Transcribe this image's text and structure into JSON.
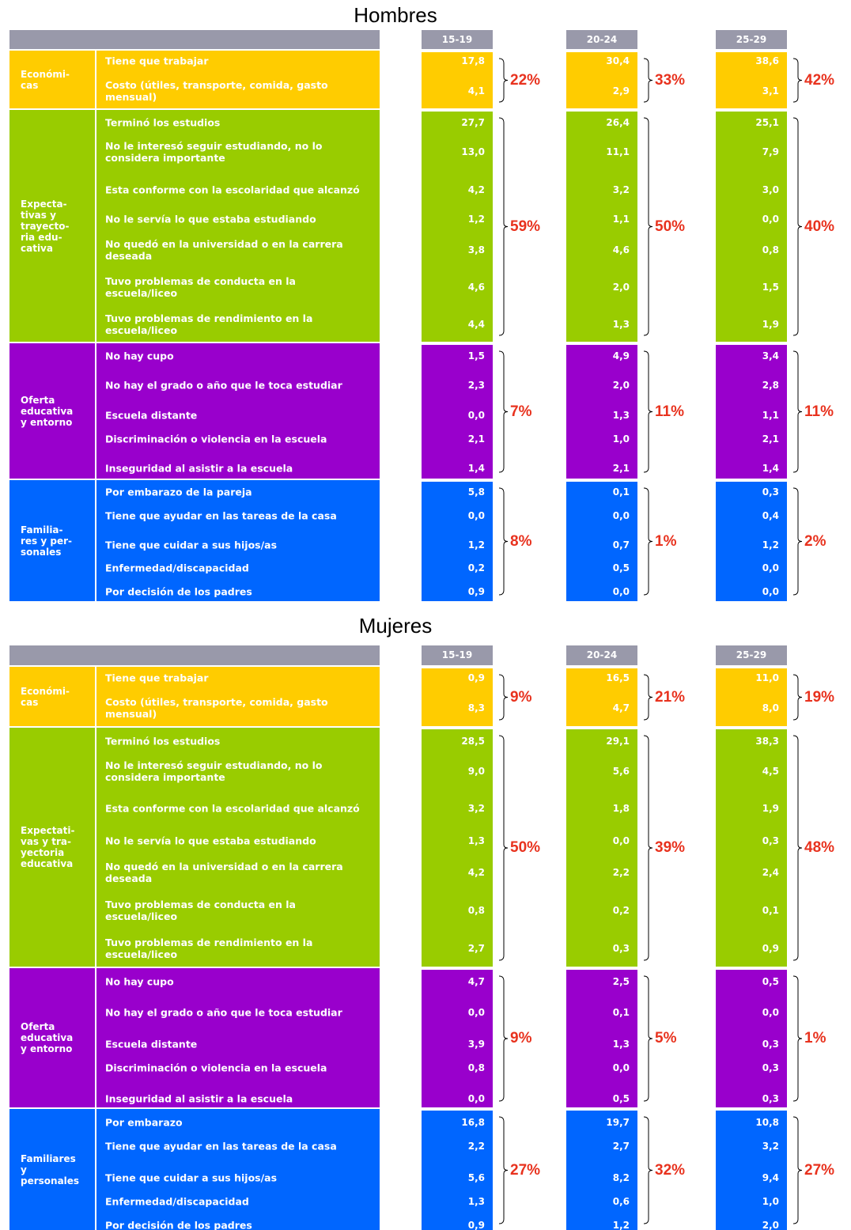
{
  "sections": [
    {
      "title": "Hombres",
      "groups": [
        {
          "label": "Económi-\ncas",
          "items": [
            "Tiene que trabajar",
            "Costo (útiles, transporte, comida, gasto mensual)"
          ]
        },
        {
          "label": "Expecta-\ntivas y\ntrayecto-\nria edu-\ncativa",
          "items": [
            "Terminó los estudios",
            "No le interesó seguir estudiando, no lo considera importante",
            "Esta conforme con la escolaridad que alcanzó",
            "No le servía lo que estaba estudiando",
            "No quedó en la universidad o en la carrera deseada",
            "Tuvo problemas de conducta en la escuela/liceo",
            "Tuvo problemas de rendimiento en la escuela/liceo"
          ]
        },
        {
          "label": "Oferta\neducativa\ny entorno",
          "items": [
            "No hay cupo",
            "No hay el grado o año que le toca estudiar",
            "Escuela distante",
            "Discriminación o violencia en la escuela",
            "Inseguridad al asistir a la escuela"
          ]
        },
        {
          "label": "Familia-\nres y per-\nsonales",
          "items": [
            "Por embarazo de la pareja",
            "Tiene que ayudar en las tareas de la casa",
            "Tiene que cuidar a sus hijos/as",
            "Enfermedad/discapacidad",
            "Por decisión de los padres"
          ]
        }
      ],
      "columns": [
        {
          "label": "15-19",
          "groups": [
            {
              "values": [
                "17,8",
                "4,1"
              ],
              "total": "22%"
            },
            {
              "values": [
                "27,7",
                "13,0",
                "4,2",
                "1,2",
                "3,8",
                "4,6",
                "4,4"
              ],
              "total": "59%"
            },
            {
              "values": [
                "1,5",
                "2,3",
                "0,0",
                "2,1",
                "1,4"
              ],
              "total": "7%"
            },
            {
              "values": [
                "5,8",
                "0,0",
                "1,2",
                "0,2",
                "0,9"
              ],
              "total": "8%"
            }
          ]
        },
        {
          "label": "20-24",
          "groups": [
            {
              "values": [
                "30,4",
                "2,9"
              ],
              "total": "33%"
            },
            {
              "values": [
                "26,4",
                "11,1",
                "3,2",
                "1,1",
                "4,6",
                "2,0",
                "1,3"
              ],
              "total": "50%"
            },
            {
              "values": [
                "4,9",
                "2,0",
                "1,3",
                "1,0",
                "2,1"
              ],
              "total": "11%"
            },
            {
              "values": [
                "0,1",
                "0,0",
                "0,7",
                "0,5",
                "0,0"
              ],
              "total": "1%"
            }
          ]
        },
        {
          "label": "25-29",
          "groups": [
            {
              "values": [
                "38,6",
                "3,1"
              ],
              "total": "42%"
            },
            {
              "values": [
                "25,1",
                "7,9",
                "3,0",
                "0,0",
                "0,8",
                "1,5",
                "1,9"
              ],
              "total": "40%"
            },
            {
              "values": [
                "3,4",
                "2,8",
                "1,1",
                "2,1",
                "1,4"
              ],
              "total": "11%"
            },
            {
              "values": [
                "0,3",
                "0,4",
                "1,2",
                "0,0",
                "0,0"
              ],
              "total": "2%"
            }
          ]
        }
      ]
    },
    {
      "title": "Mujeres",
      "groups": [
        {
          "label": "Económi-\ncas",
          "items": [
            "Tiene que trabajar",
            "Costo (útiles, transporte, comida, gasto mensual)"
          ]
        },
        {
          "label": "Expectati-\nvas y tra-\nyectoria\neducativa",
          "items": [
            "Terminó los estudios",
            "No le interesó seguir estudiando, no lo considera importante",
            "Esta conforme con la escolaridad que alcanzó",
            "No le servía lo que estaba estudiando",
            "No quedó en la universidad o en la carrera deseada",
            "Tuvo problemas de conducta en la escuela/liceo",
            "Tuvo problemas de rendimiento en la escuela/liceo"
          ]
        },
        {
          "label": "Oferta\neducativa\ny entorno",
          "items": [
            "No hay cupo",
            "No hay el grado o año que le toca estudiar",
            "Escuela distante",
            "Discriminación o violencia en la escuela",
            "Inseguridad al asistir a la escuela"
          ]
        },
        {
          "label": "Familiares\ny\npersonales",
          "items": [
            "Por embarazo",
            "Tiene que ayudar en las tareas de la casa",
            "Tiene que cuidar a sus hijos/as",
            "Enfermedad/discapacidad",
            "Por decisión de los padres"
          ]
        }
      ],
      "columns": [
        {
          "label": "15-19",
          "groups": [
            {
              "values": [
                "0,9",
                "8,3"
              ],
              "total": "9%"
            },
            {
              "values": [
                "28,5",
                "9,0",
                "3,2",
                "1,3",
                "4,2",
                "0,8",
                "2,7"
              ],
              "total": "50%"
            },
            {
              "values": [
                "4,7",
                "0,0",
                "3,9",
                "0,8",
                "0,0"
              ],
              "total": "9%"
            },
            {
              "values": [
                "16,8",
                "2,2",
                "5,6",
                "1,3",
                "0,9"
              ],
              "total": "27%"
            }
          ]
        },
        {
          "label": "20-24",
          "groups": [
            {
              "values": [
                "16,5",
                "4,7"
              ],
              "total": "21%"
            },
            {
              "values": [
                "29,1",
                "5,6",
                "1,8",
                "0,0",
                "2,2",
                "0,2",
                "0,3"
              ],
              "total": "39%"
            },
            {
              "values": [
                "2,5",
                "0,1",
                "1,3",
                "0,0",
                "0,5"
              ],
              "total": "5%"
            },
            {
              "values": [
                "19,7",
                "2,7",
                "8,2",
                "0,6",
                "1,2"
              ],
              "total": "32%"
            }
          ]
        },
        {
          "label": "25-29",
          "groups": [
            {
              "values": [
                "11,0",
                "8,0"
              ],
              "total": "19%"
            },
            {
              "values": [
                "38,3",
                "4,5",
                "1,9",
                "0,3",
                "2,4",
                "0,1",
                "0,9"
              ],
              "total": "48%"
            },
            {
              "values": [
                "0,5",
                "0,0",
                "0,3",
                "0,3",
                "0,3"
              ],
              "total": "1%"
            },
            {
              "values": [
                "10,8",
                "3,2",
                "9,4",
                "1,0",
                "2,0"
              ],
              "total": "27%"
            }
          ]
        }
      ]
    }
  ]
}
